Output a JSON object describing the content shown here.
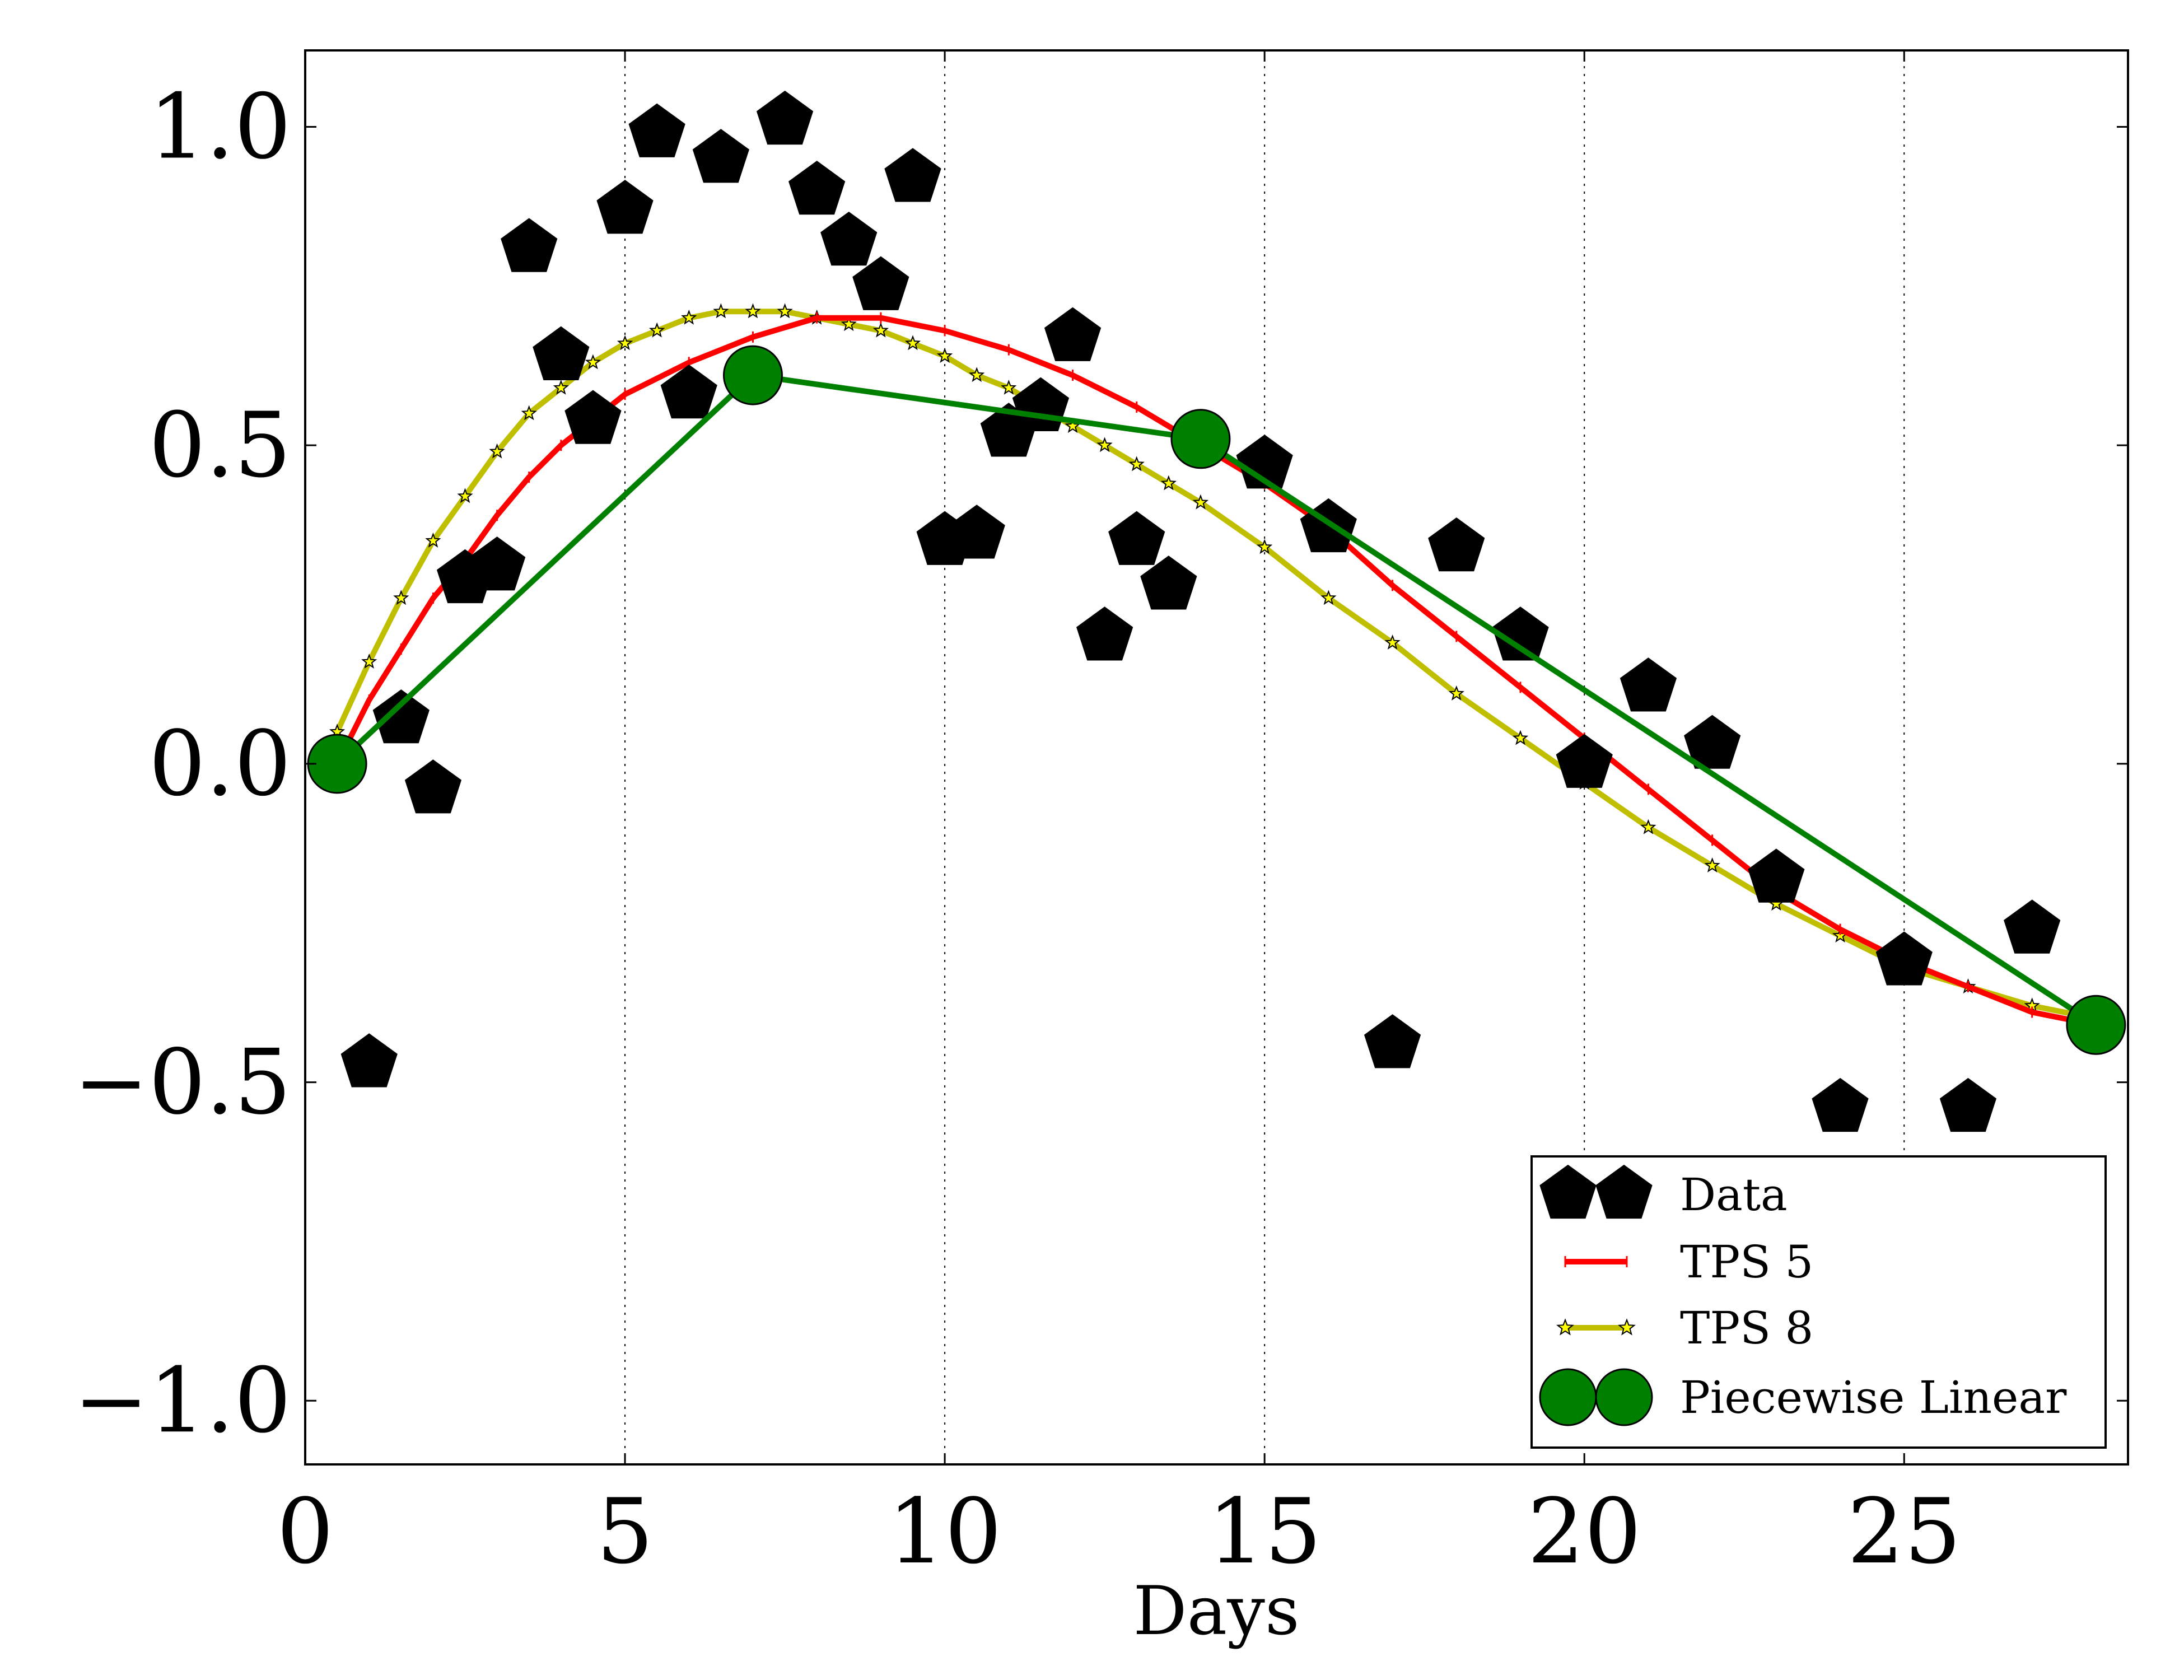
{
  "chart_data": {
    "type": "scatter",
    "title": "",
    "xlabel": "Days",
    "ylabel": "",
    "xlim": [
      0,
      28.5
    ],
    "ylim": [
      -1.1,
      1.12
    ],
    "xticks": [
      0,
      5,
      10,
      15,
      20,
      25
    ],
    "xtick_labels": [
      "0",
      "5",
      "10",
      "15",
      "20",
      "25"
    ],
    "yticks": [
      1.0,
      0.5,
      0.0,
      -0.5,
      -1.0
    ],
    "ytick_labels": [
      "1.0",
      "0.5",
      "0.0",
      "−0.5",
      "−1.0"
    ],
    "grid": "x-dotted",
    "legend_position": "lower-right",
    "series": [
      {
        "name": "Data",
        "kind": "markers",
        "marker": "pentagon",
        "color": "#000000",
        "points": [
          [
            1.0,
            -0.47
          ],
          [
            1.5,
            0.07
          ],
          [
            2.0,
            -0.04
          ],
          [
            2.5,
            0.29
          ],
          [
            3.0,
            0.31
          ],
          [
            3.5,
            0.81
          ],
          [
            4.0,
            0.64
          ],
          [
            4.5,
            0.54
          ],
          [
            5.0,
            0.87
          ],
          [
            5.5,
            0.99
          ],
          [
            6.0,
            0.58
          ],
          [
            6.5,
            0.95
          ],
          [
            7.5,
            1.01
          ],
          [
            8.0,
            0.9
          ],
          [
            8.5,
            0.82
          ],
          [
            9.0,
            0.75
          ],
          [
            9.5,
            0.92
          ],
          [
            10.0,
            0.35
          ],
          [
            10.5,
            0.36
          ],
          [
            11.0,
            0.52
          ],
          [
            11.5,
            0.56
          ],
          [
            12.0,
            0.67
          ],
          [
            12.5,
            0.2
          ],
          [
            13.0,
            0.35
          ],
          [
            13.5,
            0.28
          ],
          [
            15.0,
            0.47
          ],
          [
            16.0,
            0.37
          ],
          [
            17.0,
            -0.44
          ],
          [
            18.0,
            0.34
          ],
          [
            19.0,
            0.2
          ],
          [
            20.0,
            0.0
          ],
          [
            21.0,
            0.12
          ],
          [
            22.0,
            0.03
          ],
          [
            23.0,
            -0.18
          ],
          [
            24.0,
            -0.54
          ],
          [
            25.0,
            -0.31
          ],
          [
            26.0,
            -0.54
          ],
          [
            27.0,
            -0.26
          ]
        ]
      },
      {
        "name": "TPS 5",
        "kind": "line",
        "color": "#ff0000",
        "points": [
          [
            0.5,
            0.0
          ],
          [
            1.0,
            0.1
          ],
          [
            1.5,
            0.18
          ],
          [
            2.0,
            0.26
          ],
          [
            2.5,
            0.32
          ],
          [
            3.0,
            0.39
          ],
          [
            3.5,
            0.45
          ],
          [
            4.0,
            0.5
          ],
          [
            5.0,
            0.58
          ],
          [
            6.0,
            0.63
          ],
          [
            7.0,
            0.67
          ],
          [
            8.0,
            0.7
          ],
          [
            9.0,
            0.7
          ],
          [
            10.0,
            0.68
          ],
          [
            11.0,
            0.65
          ],
          [
            12.0,
            0.61
          ],
          [
            13.0,
            0.56
          ],
          [
            14.0,
            0.5
          ],
          [
            15.0,
            0.44
          ],
          [
            16.0,
            0.37
          ],
          [
            17.0,
            0.28
          ],
          [
            18.0,
            0.2
          ],
          [
            19.0,
            0.12
          ],
          [
            20.0,
            0.04
          ],
          [
            21.0,
            -0.04
          ],
          [
            22.0,
            -0.12
          ],
          [
            23.0,
            -0.2
          ],
          [
            24.0,
            -0.26
          ],
          [
            25.0,
            -0.31
          ],
          [
            26.0,
            -0.35
          ],
          [
            27.0,
            -0.39
          ],
          [
            28.0,
            -0.41
          ]
        ]
      },
      {
        "name": "TPS 8",
        "kind": "line",
        "color": "#bfbf00",
        "points": [
          [
            0.5,
            0.05
          ],
          [
            1.0,
            0.16
          ],
          [
            1.5,
            0.26
          ],
          [
            2.0,
            0.35
          ],
          [
            2.5,
            0.42
          ],
          [
            3.0,
            0.49
          ],
          [
            3.5,
            0.55
          ],
          [
            4.0,
            0.59
          ],
          [
            4.5,
            0.63
          ],
          [
            5.0,
            0.66
          ],
          [
            5.5,
            0.68
          ],
          [
            6.0,
            0.7
          ],
          [
            6.5,
            0.71
          ],
          [
            7.0,
            0.71
          ],
          [
            7.5,
            0.71
          ],
          [
            8.0,
            0.7
          ],
          [
            8.5,
            0.69
          ],
          [
            9.0,
            0.68
          ],
          [
            9.5,
            0.66
          ],
          [
            10.0,
            0.64
          ],
          [
            10.5,
            0.61
          ],
          [
            11.0,
            0.59
          ],
          [
            11.5,
            0.56
          ],
          [
            12.0,
            0.53
          ],
          [
            12.5,
            0.5
          ],
          [
            13.0,
            0.47
          ],
          [
            13.5,
            0.44
          ],
          [
            14.0,
            0.41
          ],
          [
            15.0,
            0.34
          ],
          [
            16.0,
            0.26
          ],
          [
            17.0,
            0.19
          ],
          [
            18.0,
            0.11
          ],
          [
            19.0,
            0.04
          ],
          [
            20.0,
            -0.03
          ],
          [
            21.0,
            -0.1
          ],
          [
            22.0,
            -0.16
          ],
          [
            23.0,
            -0.22
          ],
          [
            24.0,
            -0.27
          ],
          [
            25.0,
            -0.32
          ],
          [
            26.0,
            -0.35
          ],
          [
            27.0,
            -0.38
          ],
          [
            28.0,
            -0.4
          ]
        ]
      },
      {
        "name": "Piecewise Linear",
        "kind": "line",
        "marker": "circle",
        "color": "#008000",
        "points": [
          [
            0.5,
            0.0
          ],
          [
            7.0,
            0.61
          ],
          [
            14.0,
            0.51
          ],
          [
            28.0,
            -0.41
          ]
        ]
      }
    ]
  }
}
